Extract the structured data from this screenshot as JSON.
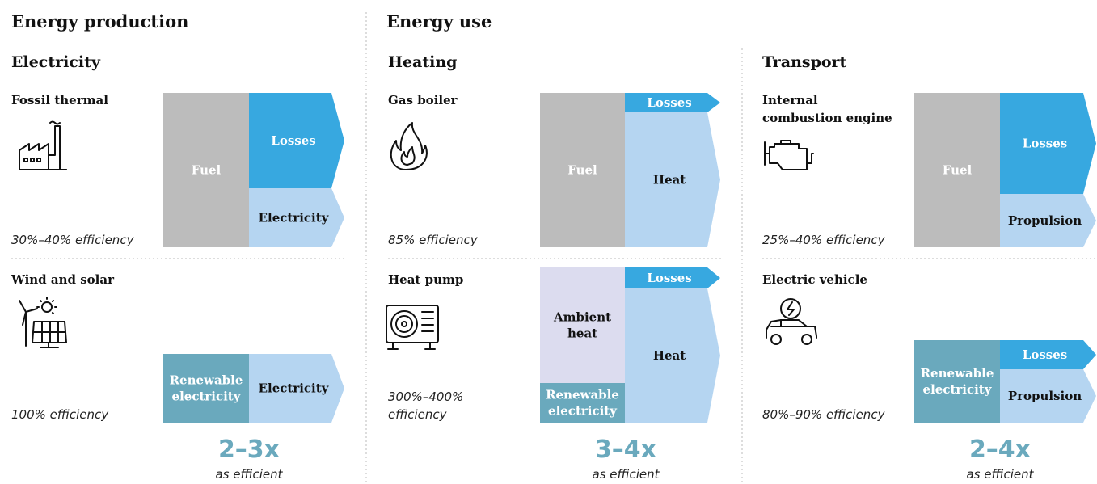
{
  "sections": [
    "Energy production",
    "Energy use"
  ],
  "panels": [
    {
      "title": "Electricity",
      "rows": [
        {
          "label": [
            "Fossil thermal"
          ],
          "efficiency": [
            "30%–40% efficiency"
          ],
          "blocks": [
            [
              "Fuel"
            ],
            [
              "Losses"
            ],
            [
              "Electricity"
            ]
          ]
        },
        {
          "label": [
            "Wind and solar"
          ],
          "efficiency": [
            "100% efficiency"
          ],
          "blocks": [
            [
              "Renewable",
              "electricity"
            ],
            [
              "Electricity"
            ]
          ]
        }
      ],
      "ratio": "2–3x",
      "ratio_note": "as efficient"
    },
    {
      "title": "Heating",
      "rows": [
        {
          "label": [
            "Gas boiler"
          ],
          "efficiency": [
            "85% efficiency"
          ],
          "blocks": [
            [
              "Fuel"
            ],
            [
              "Losses"
            ],
            [
              "Heat"
            ]
          ]
        },
        {
          "label": [
            "Heat pump"
          ],
          "efficiency": [
            "300%–400%",
            "efficiency"
          ],
          "blocks": [
            [
              "Ambient",
              "heat"
            ],
            [
              "Renewable",
              "electricity"
            ],
            [
              "Losses"
            ],
            [
              "Heat"
            ]
          ]
        }
      ],
      "ratio": "3–4x",
      "ratio_note": "as efficient"
    },
    {
      "title": "Transport",
      "rows": [
        {
          "label": [
            "Internal",
            "combustion engine"
          ],
          "efficiency": [
            "25%–40% efficiency"
          ],
          "blocks": [
            [
              "Fuel"
            ],
            [
              "Losses"
            ],
            [
              "Propulsion"
            ]
          ]
        },
        {
          "label": [
            "Electric vehicle"
          ],
          "efficiency": [
            "80%–90% efficiency"
          ],
          "blocks": [
            [
              "Renewable",
              "electricity"
            ],
            [
              "Losses"
            ],
            [
              "Propulsion"
            ]
          ]
        }
      ],
      "ratio": "2–4x",
      "ratio_note": "as efficient"
    }
  ]
}
